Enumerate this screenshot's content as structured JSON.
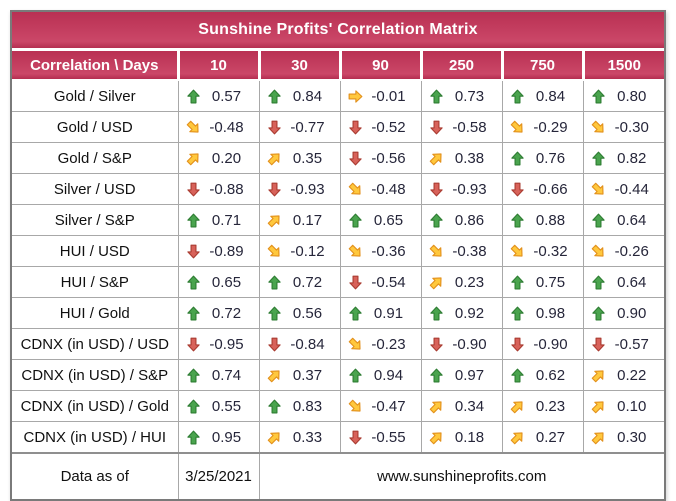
{
  "chart_data": {
    "type": "table",
    "title": "Sunshine Profits' Correlation Matrix",
    "columns": [
      "Correlation \\ Days",
      "10",
      "30",
      "90",
      "250",
      "750",
      "1500"
    ],
    "rows": [
      "Gold / Silver",
      "Gold / USD",
      "Gold / S&P",
      "Silver / USD",
      "Silver / S&P",
      "HUI / USD",
      "HUI / S&P",
      "HUI / Gold",
      "CDNX (in USD) / USD",
      "CDNX (in USD) / S&P",
      "CDNX (in USD) / Gold",
      "CDNX (in USD) / HUI"
    ],
    "values": [
      [
        0.57,
        0.84,
        -0.01,
        0.73,
        0.84,
        0.8
      ],
      [
        -0.48,
        -0.77,
        -0.52,
        -0.58,
        -0.29,
        -0.3
      ],
      [
        0.2,
        0.35,
        -0.56,
        0.38,
        0.76,
        0.82
      ],
      [
        -0.88,
        -0.93,
        -0.48,
        -0.93,
        -0.66,
        -0.44
      ],
      [
        0.71,
        0.17,
        0.65,
        0.86,
        0.88,
        0.64
      ],
      [
        -0.89,
        -0.12,
        -0.36,
        -0.38,
        -0.32,
        -0.26
      ],
      [
        0.65,
        0.72,
        -0.54,
        0.23,
        0.75,
        0.64
      ],
      [
        0.72,
        0.56,
        0.91,
        0.92,
        0.98,
        0.9
      ],
      [
        -0.95,
        -0.84,
        -0.23,
        -0.9,
        -0.9,
        -0.57
      ],
      [
        0.74,
        0.37,
        0.94,
        0.97,
        0.62,
        0.22
      ],
      [
        0.55,
        0.83,
        -0.47,
        0.34,
        0.23,
        0.1
      ],
      [
        0.95,
        0.33,
        -0.55,
        0.18,
        0.27,
        0.3
      ]
    ],
    "trends": [
      [
        "up",
        "up",
        "right",
        "up",
        "up",
        "up"
      ],
      [
        "down-right",
        "down",
        "down",
        "down",
        "down-right",
        "down-right"
      ],
      [
        "up-right",
        "up-right",
        "down",
        "up-right",
        "up",
        "up"
      ],
      [
        "down",
        "down",
        "down-right",
        "down",
        "down",
        "down-right"
      ],
      [
        "up",
        "up-right",
        "up",
        "up",
        "up",
        "up"
      ],
      [
        "down",
        "down-right",
        "down-right",
        "down-right",
        "down-right",
        "down-right"
      ],
      [
        "up",
        "up",
        "down",
        "up-right",
        "up",
        "up"
      ],
      [
        "up",
        "up",
        "up",
        "up",
        "up",
        "up"
      ],
      [
        "down",
        "down",
        "down-right",
        "down",
        "down",
        "down"
      ],
      [
        "up",
        "up-right",
        "up",
        "up",
        "up",
        "up-right"
      ],
      [
        "up",
        "up",
        "down-right",
        "up-right",
        "up-right",
        "up-right"
      ],
      [
        "up",
        "up-right",
        "down",
        "up-right",
        "up-right",
        "up-right"
      ]
    ],
    "legend_position": "none",
    "grid": true
  },
  "footer": {
    "label": "Data as of",
    "date": "3/25/2021",
    "website": "www.sunshineprofits.com"
  },
  "colors": {
    "crimson_top": "#b93053",
    "crimson_bottom": "#cb4768",
    "header_text": "#ffffff",
    "outer_border": "#7a7a7a",
    "grid_line": "#a8a8a8",
    "label_text": "#101010",
    "value_text": "#26263a",
    "arrows": {
      "up": {
        "fill": "#4aa44e",
        "stroke": "#2e7d33"
      },
      "down": {
        "fill": "#d8625a",
        "stroke": "#aa3c32"
      },
      "up-right": {
        "fill": "#ffc83d",
        "stroke": "#e2901c"
      },
      "down-right": {
        "fill": "#ffc83d",
        "stroke": "#e2901c"
      },
      "right": {
        "fill": "#ffc83d",
        "stroke": "#e2901c"
      }
    }
  }
}
